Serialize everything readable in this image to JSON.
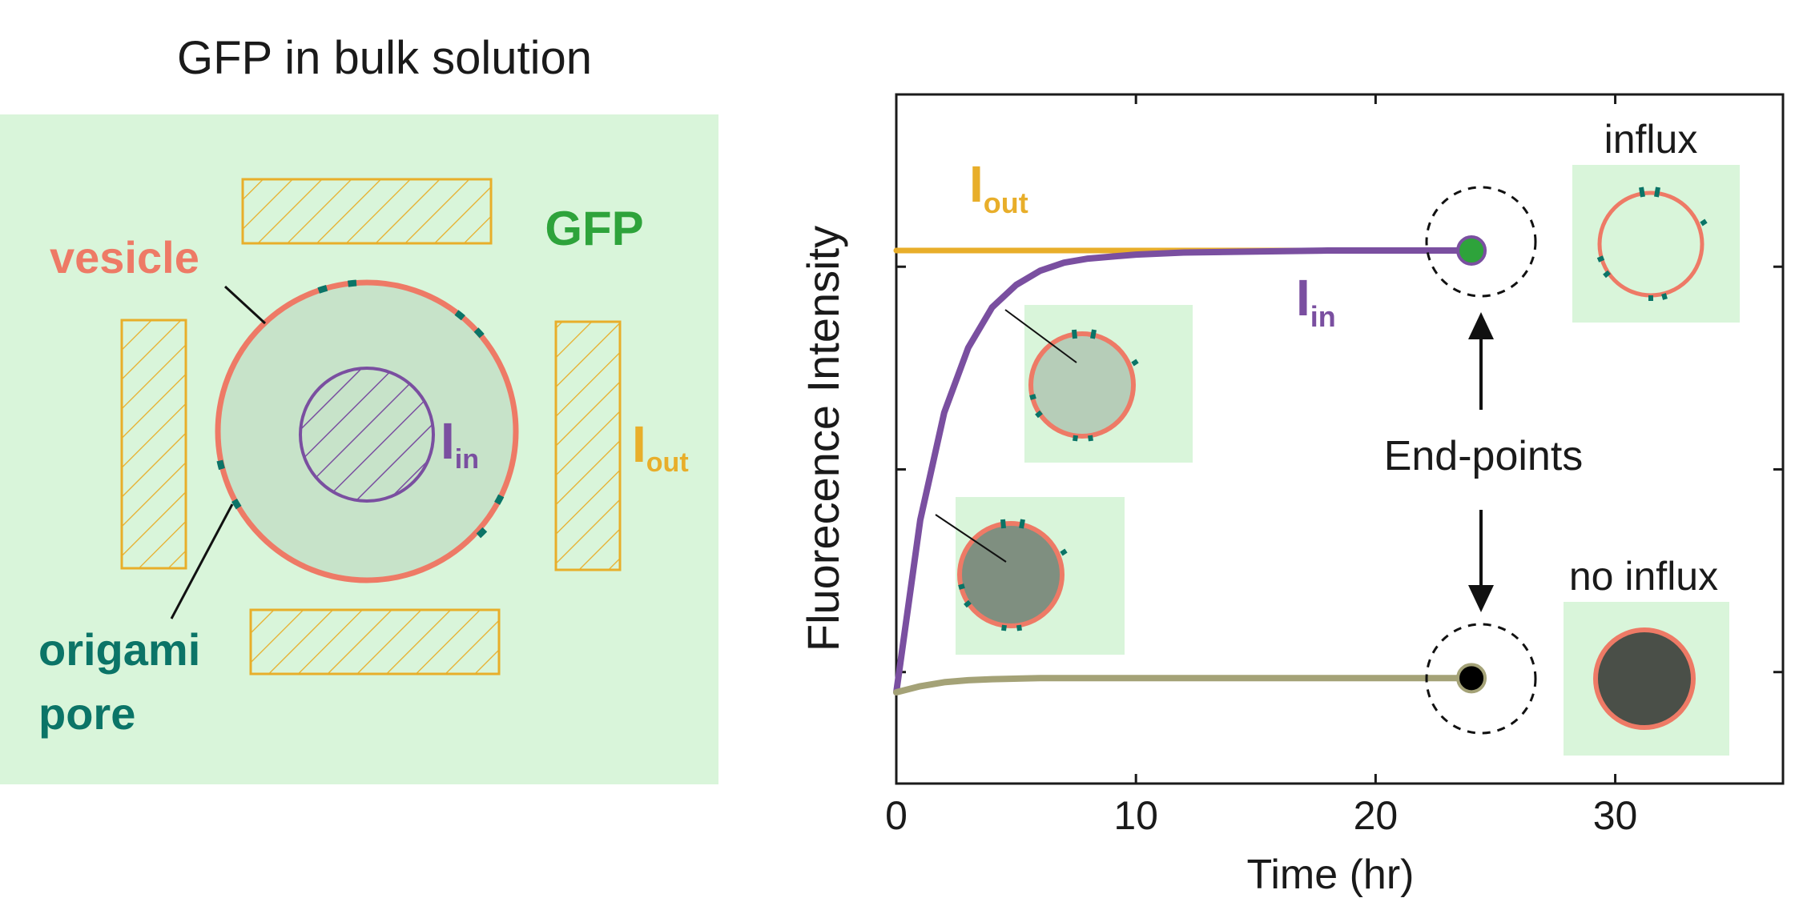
{
  "colors": {
    "background_green": "#d9f5da",
    "vesicle_fill_light": "#c7e3c9",
    "vesicle_membrane": "#ee7a66",
    "pore": "#0b7467",
    "gfp_green": "#2ea33b",
    "hatch_orange": "#e8ae2a",
    "purple": "#7a4fa0",
    "olive": "#a4a277",
    "mid_vesicle_fill": "#b6cdb8",
    "dark_vesicle_fill": "#7f8f80",
    "no_influx_fill": "#4a4f48",
    "axis": "#1a1a1a"
  },
  "left_panel": {
    "title": "GFP in bulk solution",
    "gfp_label": "GFP",
    "vesicle_label": "vesicle",
    "pore_label_line1": "origami",
    "pore_label_line2": "pore",
    "i_in": {
      "main": "I",
      "sub": "in"
    },
    "i_out": {
      "main": "I",
      "sub": "out"
    }
  },
  "right_panel": {
    "ylabel": "Fluorecence Intensity",
    "xlabel": "Time (hr)",
    "end_points_label": "End-points",
    "influx_label": "influx",
    "no_influx_label": "no influx",
    "i_out": {
      "main": "I",
      "sub": "out"
    },
    "i_in": {
      "main": "I",
      "sub": "in"
    }
  },
  "chart_data": {
    "type": "line",
    "xlabel": "Time (hr)",
    "ylabel": "Fluorecence Intensity",
    "xlim": [
      0,
      37
    ],
    "ylim": [
      -0.55,
      2.85
    ],
    "xticks": [
      0,
      10,
      20,
      30
    ],
    "xtick_labels": [
      "0",
      "10",
      "20",
      "30"
    ],
    "yticks": [
      0,
      1,
      2
    ],
    "ytick_labels": [
      "",
      "",
      ""
    ],
    "series": [
      {
        "name": "I_out",
        "color": "#e8ae2a",
        "x": [
          0,
          24
        ],
        "y": [
          2.08,
          2.08
        ]
      },
      {
        "name": "I_in",
        "color": "#7a4fa0",
        "x": [
          0,
          1,
          2,
          3,
          4,
          5,
          6,
          7,
          8,
          10,
          12,
          15,
          18,
          21,
          24
        ],
        "y": [
          -0.1,
          0.75,
          1.28,
          1.6,
          1.8,
          1.91,
          1.98,
          2.02,
          2.04,
          2.06,
          2.07,
          2.075,
          2.08,
          2.08,
          2.08
        ]
      },
      {
        "name": "no influx",
        "color": "#a4a277",
        "x": [
          0,
          1,
          2,
          3,
          4,
          6,
          8,
          12,
          24
        ],
        "y": [
          -0.1,
          -0.07,
          -0.05,
          -0.04,
          -0.035,
          -0.03,
          -0.03,
          -0.03,
          -0.03
        ]
      }
    ],
    "end_points": [
      {
        "x": 24,
        "y": 2.08,
        "fill": "#2ea33b"
      },
      {
        "x": 24,
        "y": -0.03,
        "fill": "#000000"
      }
    ]
  }
}
